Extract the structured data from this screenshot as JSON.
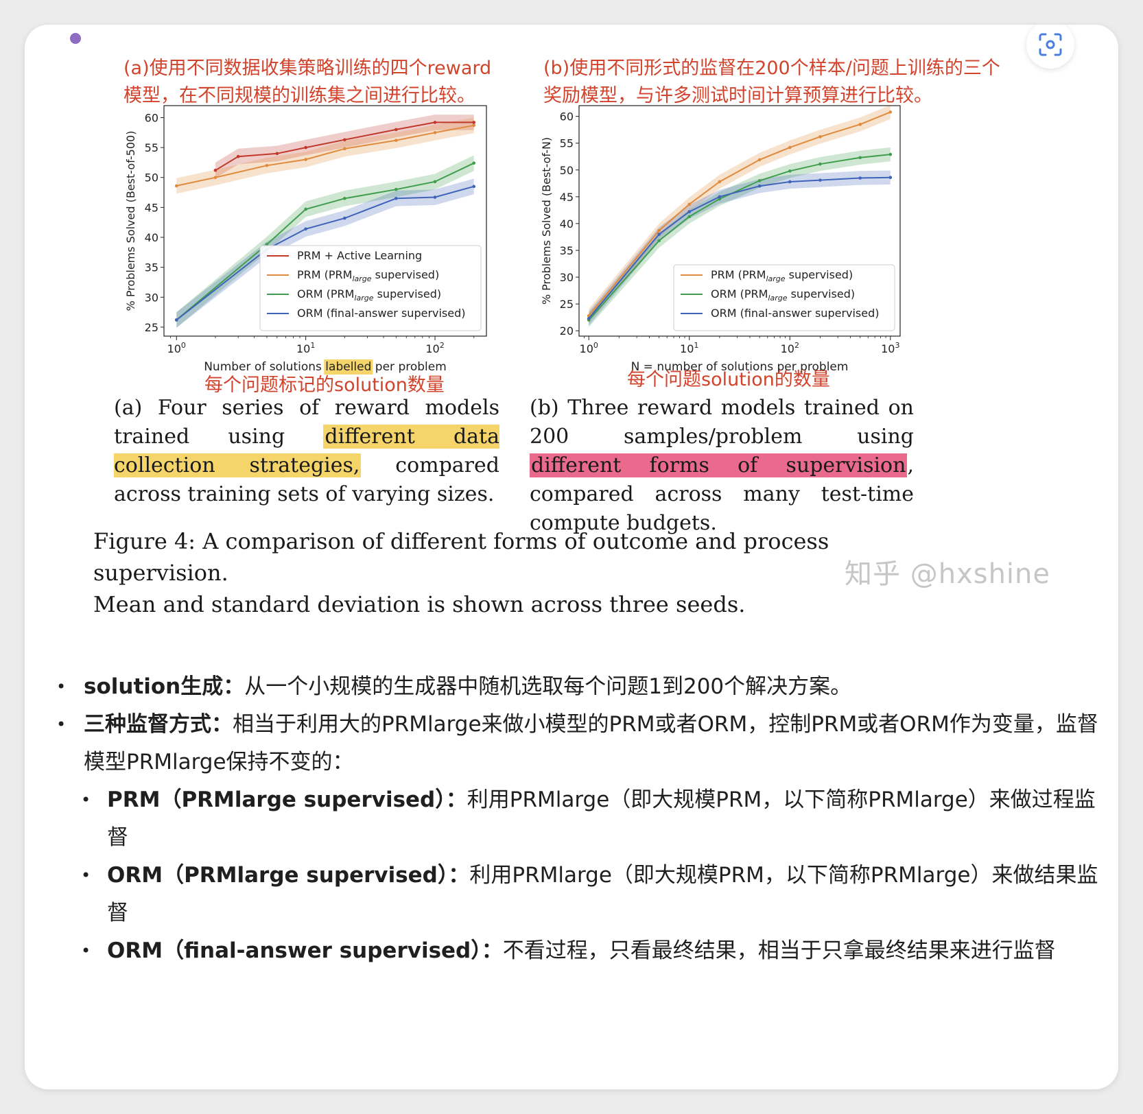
{
  "panel_a": {
    "annotation": "(a)使用不同数据收集策略训练的四个reward模型，在不同规模的训练集之间进行比较。",
    "bottom_annotation": "每个问题标记的solution数量",
    "caption": {
      "pre": "(a) Four series of reward models trained using ",
      "highlight": "different data collection strategies,",
      "post": " compared across training sets of varying sizes."
    }
  },
  "panel_b": {
    "annotation": "(b)使用不同形式的监督在200个样本/问题上训练的三个奖励模型，与许多测试时间计算预算进行比较。",
    "bottom_annotation": "每个问题solution的数量",
    "caption": {
      "pre": "(b) Three reward models trained on 200 samples/problem using ",
      "highlight": "different forms of supervision",
      "post": ", compared across many test-time compute budgets."
    }
  },
  "figure_caption": {
    "line1": "Figure 4: A comparison of different forms of outcome and process supervision.",
    "line2": "Mean and standard deviation is shown across three seeds."
  },
  "watermark": "知乎 @hxshine",
  "notes": [
    {
      "bold": "solution生成：",
      "text": "从一个小规模的生成器中随机选取每个问题1到200个解决方案。",
      "level": 1
    },
    {
      "bold": "三种监督方式：",
      "text": "相当于利用大的PRMlarge来做小模型的PRM或者ORM，控制PRM或者ORM作为变量，监督模型PRMlarge保持不变的：",
      "level": 1
    },
    {
      "bold": "PRM（PRMlarge supervised）：",
      "text": "利用PRMlarge（即大规模PRM，以下简称PRMlarge）来做过程监督",
      "level": 2
    },
    {
      "bold": "ORM（PRMlarge supervised）：",
      "text": "利用PRMlarge（即大规模PRM，以下简称PRMlarge）来做结果监督",
      "level": 2
    },
    {
      "bold": "ORM（final-answer supervised）：",
      "text": "不看过程，只看最终结果，相当于只拿最终结果来进行监督",
      "level": 2
    }
  ],
  "chart_data": [
    {
      "type": "line",
      "xlabel_parts": [
        "Number of solutions ",
        "labelled",
        " per problem"
      ],
      "ylabel": "% Problems Solved (Best-of-500)",
      "xscale": "log",
      "xlim": [
        0.8,
        250
      ],
      "ylim": [
        23.5,
        62
      ],
      "xticks": [
        {
          "v": 1,
          "base": "10",
          "exp": "0"
        },
        {
          "v": 10,
          "base": "10",
          "exp": "1"
        },
        {
          "v": 100,
          "base": "10",
          "exp": "2"
        }
      ],
      "yticks": [
        25,
        30,
        35,
        40,
        45,
        50,
        55,
        60
      ],
      "legend_position": "lower-right",
      "series": [
        {
          "name": "PRM + Active Learning",
          "legend_main": "PRM + Active Learning",
          "legend_sub": "",
          "legend_post": "",
          "color": "#c0392b",
          "x": [
            2,
            3,
            6,
            10,
            20,
            50,
            100,
            200
          ],
          "y": [
            51.2,
            53.5,
            54.0,
            55.0,
            56.3,
            58.0,
            59.2,
            59.2
          ]
        },
        {
          "name": "PRM (PRMlarge supervised)",
          "legend_main": "PRM (PRM",
          "legend_sub": "large",
          "legend_post": " supervised)",
          "color": "#e08a3c",
          "x": [
            1,
            2,
            5,
            10,
            20,
            50,
            100,
            200
          ],
          "y": [
            48.6,
            50.0,
            52.0,
            53.0,
            54.8,
            56.2,
            57.5,
            58.7
          ]
        },
        {
          "name": "ORM (PRMlarge supervised)",
          "legend_main": "ORM (PRM",
          "legend_sub": "large",
          "legend_post": " supervised)",
          "color": "#3f9e4d",
          "x": [
            1,
            5,
            10,
            20,
            50,
            100,
            200
          ],
          "y": [
            26.2,
            38.8,
            44.7,
            46.5,
            48.0,
            49.3,
            52.4
          ]
        },
        {
          "name": "ORM (final-answer supervised)",
          "legend_main": "ORM (final-answer supervised)",
          "legend_sub": "",
          "legend_post": "",
          "color": "#3f63b8",
          "x": [
            1,
            5,
            10,
            20,
            50,
            100,
            200
          ],
          "y": [
            26.2,
            38.0,
            41.4,
            43.2,
            46.5,
            46.7,
            48.5
          ]
        }
      ]
    },
    {
      "type": "line",
      "xlabel_parts": [
        "N = number of solutions per problem"
      ],
      "ylabel": "% Problems Solved (Best-of-N)",
      "xscale": "log",
      "xlim": [
        0.8,
        1250
      ],
      "ylim": [
        19,
        62
      ],
      "xticks": [
        {
          "v": 1,
          "base": "10",
          "exp": "0"
        },
        {
          "v": 10,
          "base": "10",
          "exp": "1"
        },
        {
          "v": 100,
          "base": "10",
          "exp": "2"
        },
        {
          "v": 1000,
          "base": "10",
          "exp": "3"
        }
      ],
      "yticks": [
        20,
        25,
        30,
        35,
        40,
        45,
        50,
        55,
        60
      ],
      "legend_position": "lower-right",
      "series": [
        {
          "name": "PRM (PRMlarge supervised)",
          "legend_main": "PRM (PRM",
          "legend_sub": "large",
          "legend_post": " supervised)",
          "color": "#e08a3c",
          "x": [
            1,
            5,
            10,
            20,
            50,
            100,
            200,
            500,
            1000
          ],
          "y": [
            22.8,
            38.7,
            43.6,
            47.8,
            51.9,
            54.2,
            56.2,
            58.5,
            60.8
          ]
        },
        {
          "name": "ORM (PRMlarge supervised)",
          "legend_main": "ORM (PRM",
          "legend_sub": "large",
          "legend_post": " supervised)",
          "color": "#3f9e4d",
          "x": [
            1,
            5,
            10,
            20,
            50,
            100,
            200,
            500,
            1000
          ],
          "y": [
            22.0,
            36.8,
            41.3,
            44.6,
            48.0,
            49.8,
            51.1,
            52.3,
            52.9
          ]
        },
        {
          "name": "ORM (final-answer supervised)",
          "legend_main": "ORM (final-answer supervised)",
          "legend_sub": "",
          "legend_post": "",
          "color": "#3f63b8",
          "x": [
            1,
            5,
            10,
            20,
            50,
            100,
            200,
            500,
            1000
          ],
          "y": [
            22.3,
            38.0,
            42.2,
            45.0,
            47.0,
            47.8,
            48.1,
            48.5,
            48.6
          ]
        }
      ]
    }
  ]
}
